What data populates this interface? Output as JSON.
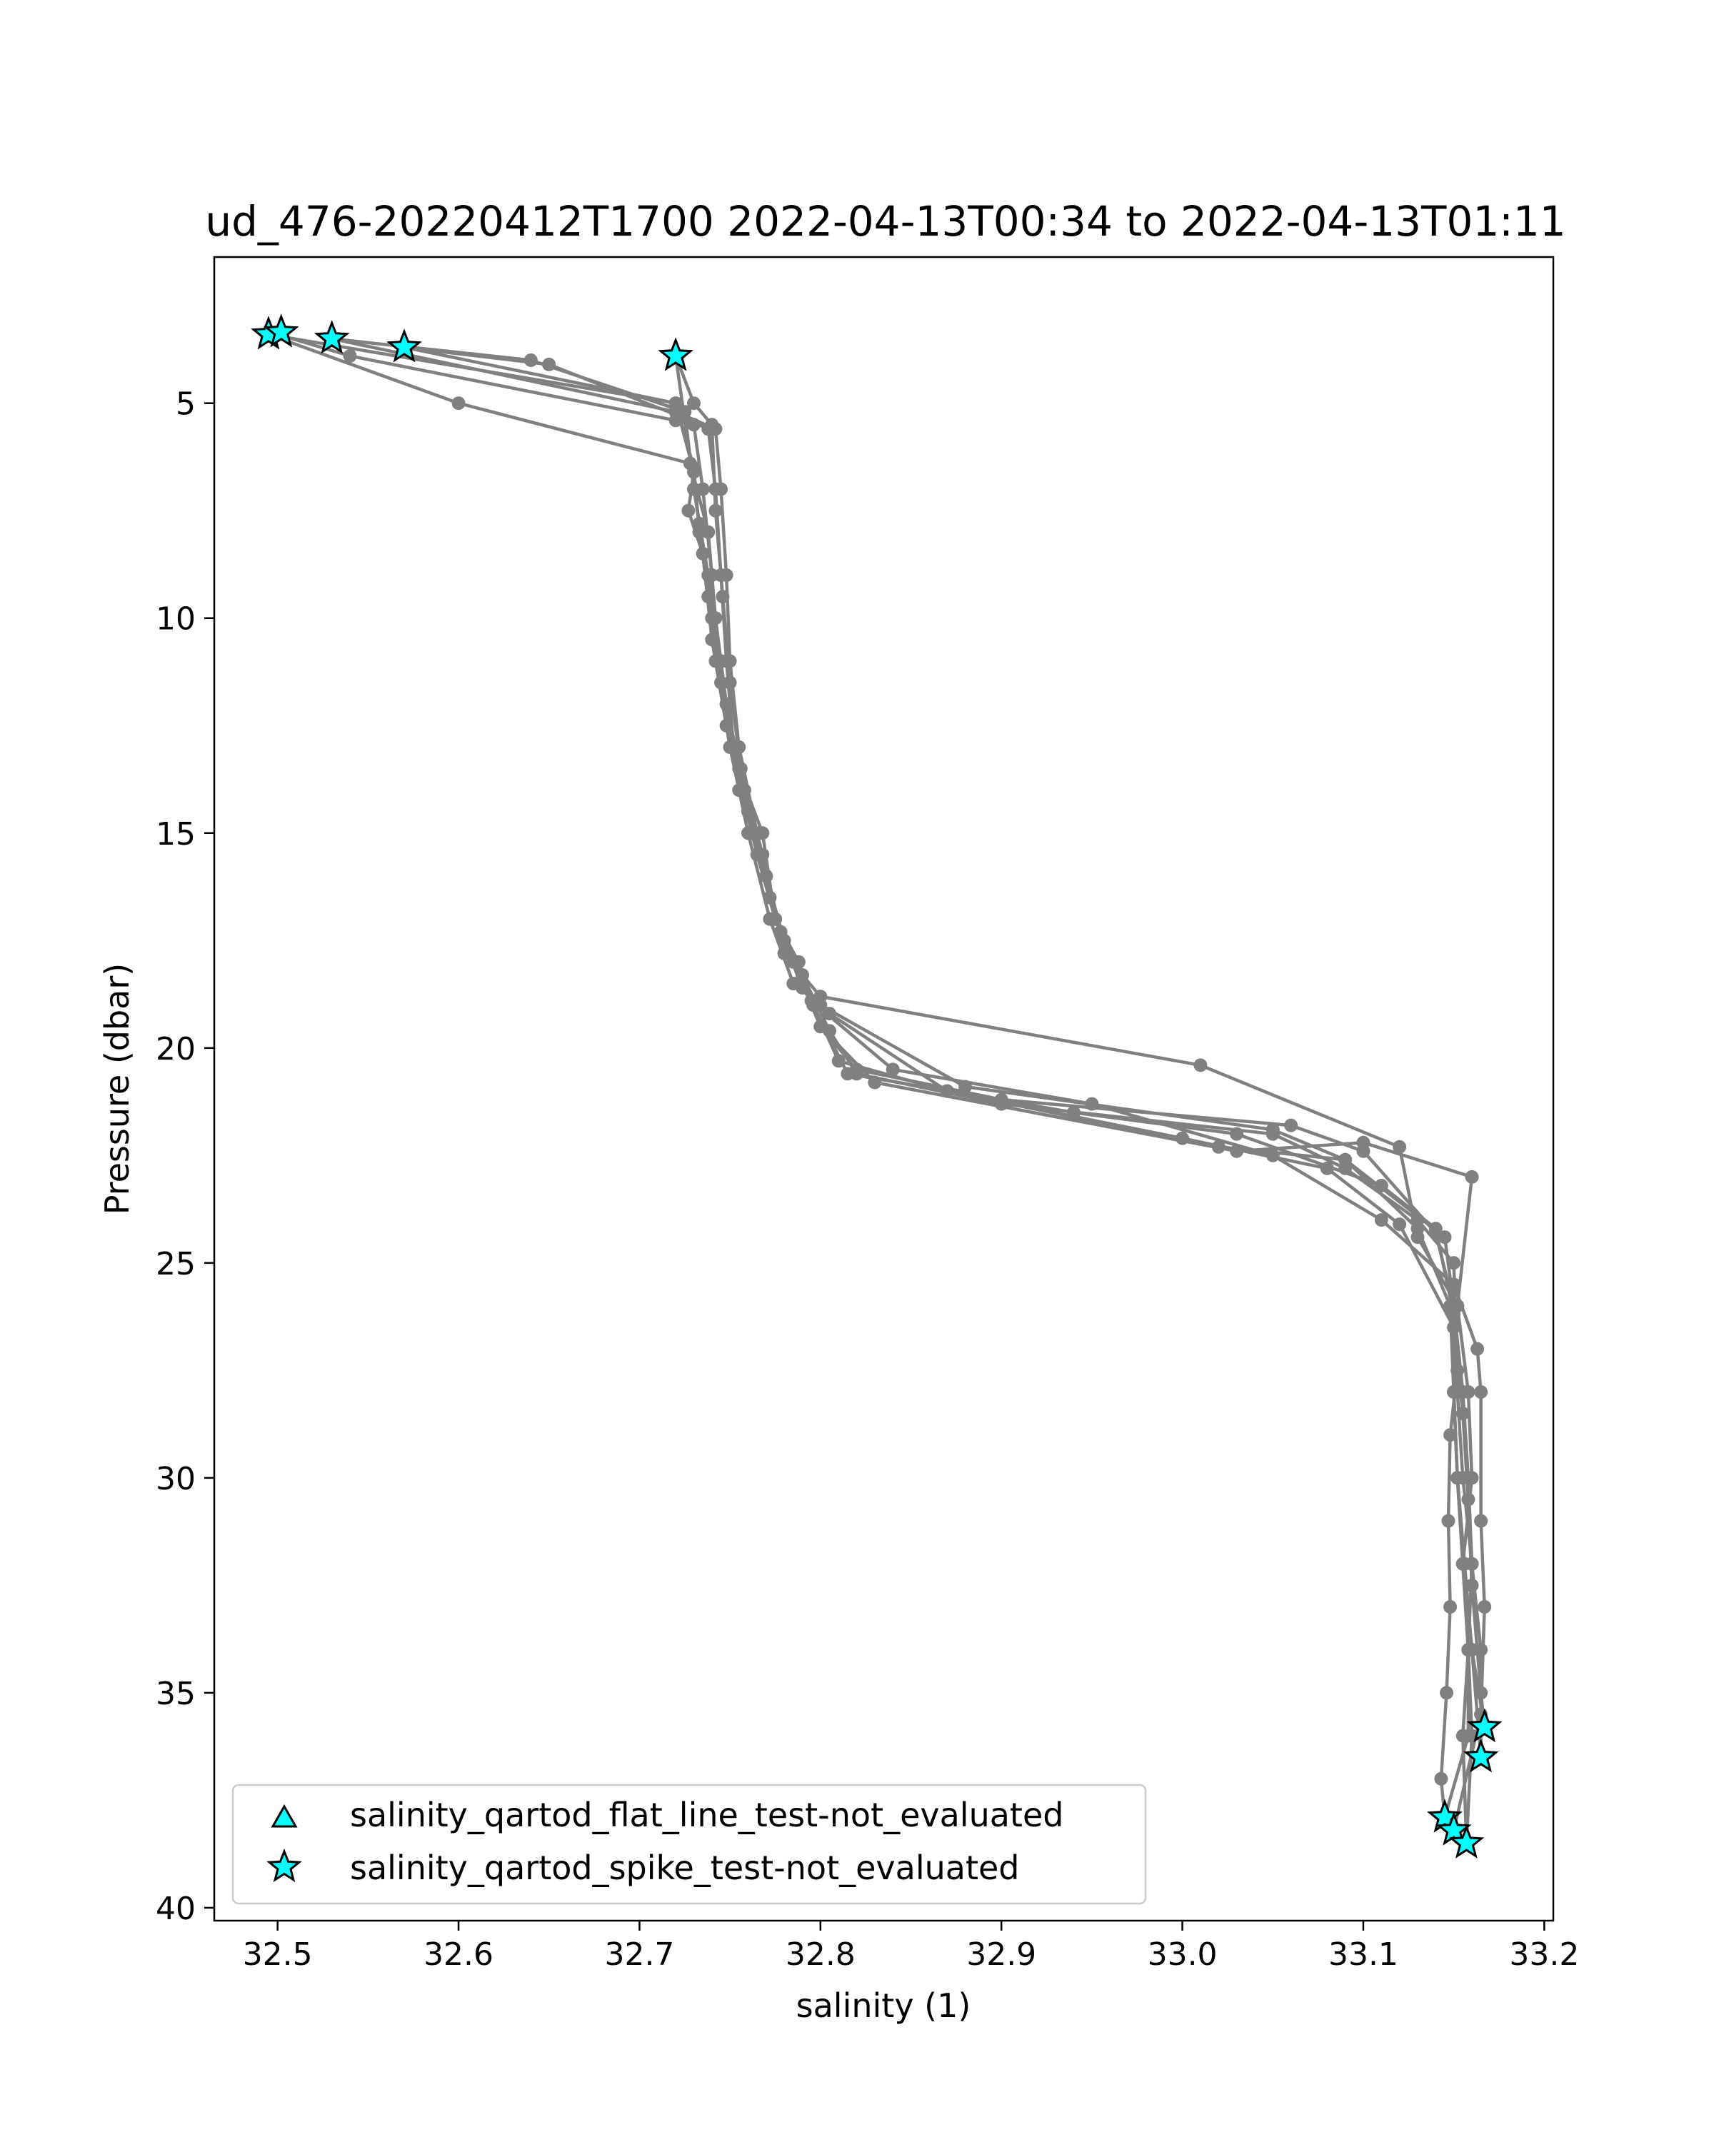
{
  "chart_data": {
    "type": "line",
    "title": "ud_476-20220412T1700 2022-04-13T00:34 to 2022-04-13T01:11",
    "xlabel": "salinity (1)",
    "ylabel": "Pressure (dbar)",
    "xlim": [
      32.465,
      33.205
    ],
    "ylim": [
      40.3,
      1.6
    ],
    "y_inverted": true,
    "xticks": [
      32.5,
      32.6,
      32.7,
      32.8,
      32.9,
      33.0,
      33.1,
      33.2
    ],
    "xtick_labels": [
      "32.5",
      "32.6",
      "32.7",
      "32.8",
      "32.9",
      "33.0",
      "33.1",
      "33.2"
    ],
    "yticks": [
      5,
      10,
      15,
      20,
      25,
      30,
      35,
      40
    ],
    "ytick_labels": [
      "5",
      "10",
      "15",
      "20",
      "25",
      "30",
      "35",
      "40"
    ],
    "grid": false,
    "legend_position": "lower-left",
    "colors": {
      "line": "#808080",
      "marker": "#808080",
      "flag_fill": "#00ffff",
      "flag_edge": "#000000"
    },
    "series": [
      {
        "profile": "down-1",
        "points": [
          [
            32.5,
            3.4
          ],
          [
            32.54,
            3.9
          ],
          [
            32.72,
            5.4
          ],
          [
            32.73,
            5.5
          ],
          [
            32.735,
            7.0
          ],
          [
            32.74,
            9.0
          ],
          [
            32.742,
            11.0
          ],
          [
            32.75,
            13.0
          ],
          [
            32.76,
            15.0
          ],
          [
            32.772,
            17.0
          ],
          [
            32.785,
            18.5
          ],
          [
            32.8,
            19.0
          ],
          [
            32.88,
            20.9
          ],
          [
            33.05,
            21.9
          ],
          [
            33.09,
            22.6
          ],
          [
            33.13,
            24.2
          ],
          [
            33.148,
            26.0
          ],
          [
            33.15,
            28.0
          ],
          [
            33.152,
            30.0
          ],
          [
            33.155,
            32.0
          ],
          [
            33.158,
            34.0
          ],
          [
            33.16,
            36.0
          ],
          [
            33.157,
            38.5
          ]
        ]
      },
      {
        "profile": "up-1",
        "points": [
          [
            33.157,
            38.5
          ],
          [
            33.155,
            36.0
          ],
          [
            33.158,
            34.0
          ],
          [
            33.16,
            32.0
          ],
          [
            33.158,
            30.0
          ],
          [
            33.155,
            28.0
          ],
          [
            33.15,
            26.0
          ],
          [
            33.14,
            24.3
          ],
          [
            33.1,
            22.4
          ],
          [
            33.06,
            21.8
          ],
          [
            32.9,
            21.2
          ],
          [
            32.82,
            20.5
          ],
          [
            32.8,
            19.5
          ],
          [
            32.788,
            18.0
          ],
          [
            32.775,
            17.0
          ],
          [
            32.768,
            15.0
          ],
          [
            32.75,
            13.0
          ],
          [
            32.745,
            11.0
          ],
          [
            32.738,
            9.0
          ],
          [
            32.73,
            7.0
          ],
          [
            32.725,
            5.2
          ],
          [
            32.64,
            4.0
          ],
          [
            32.53,
            3.5
          ]
        ]
      },
      {
        "profile": "down-2",
        "points": [
          [
            32.53,
            3.5
          ],
          [
            32.72,
            5.2
          ],
          [
            32.742,
            5.6
          ],
          [
            32.745,
            7.0
          ],
          [
            32.748,
            9.0
          ],
          [
            32.75,
            11.0
          ],
          [
            32.755,
            13.0
          ],
          [
            32.765,
            15.0
          ],
          [
            32.775,
            17.0
          ],
          [
            32.79,
            18.6
          ],
          [
            32.805,
            19.2
          ],
          [
            32.87,
            21.0
          ],
          [
            33.0,
            22.1
          ],
          [
            33.08,
            22.8
          ],
          [
            33.12,
            24.1
          ],
          [
            33.15,
            26.5
          ],
          [
            33.155,
            28.5
          ],
          [
            33.158,
            30.5
          ],
          [
            33.16,
            32.5
          ],
          [
            33.165,
            35.0
          ],
          [
            33.167,
            35.8
          ]
        ]
      },
      {
        "profile": "up-2",
        "points": [
          [
            33.167,
            35.8
          ],
          [
            33.16,
            34.0
          ],
          [
            33.155,
            32.0
          ],
          [
            33.152,
            30.0
          ],
          [
            33.15,
            28.0
          ],
          [
            33.152,
            26.0
          ],
          [
            33.16,
            23.0
          ],
          [
            33.1,
            22.2
          ],
          [
            33.03,
            22.4
          ],
          [
            32.83,
            20.8
          ],
          [
            32.8,
            19.5
          ],
          [
            32.785,
            18.0
          ],
          [
            32.772,
            16.5
          ],
          [
            32.76,
            14.5
          ],
          [
            32.748,
            12.5
          ],
          [
            32.74,
            10.5
          ],
          [
            32.735,
            8.5
          ],
          [
            32.727,
            7.5
          ],
          [
            32.73,
            6.6
          ],
          [
            32.72,
            5.0
          ],
          [
            32.57,
            3.7
          ]
        ]
      },
      {
        "profile": "down-3",
        "points": [
          [
            32.57,
            3.7
          ],
          [
            32.65,
            4.1
          ],
          [
            32.722,
            5.3
          ],
          [
            32.738,
            5.6
          ],
          [
            32.742,
            7.0
          ],
          [
            32.745,
            9.0
          ],
          [
            32.748,
            11.0
          ],
          [
            32.752,
            13.0
          ],
          [
            32.762,
            15.0
          ],
          [
            32.775,
            17.0
          ],
          [
            32.79,
            18.5
          ],
          [
            32.815,
            20.6
          ],
          [
            32.94,
            21.5
          ],
          [
            33.03,
            22.0
          ],
          [
            33.11,
            23.2
          ],
          [
            33.14,
            24.2
          ],
          [
            33.15,
            26.2
          ],
          [
            33.152,
            28.0
          ],
          [
            33.155,
            30.0
          ],
          [
            33.16,
            32.0
          ],
          [
            33.165,
            34.0
          ],
          [
            33.165,
            36.5
          ]
        ]
      },
      {
        "profile": "up-3",
        "points": [
          [
            33.165,
            36.5
          ],
          [
            33.16,
            34.0
          ],
          [
            33.156,
            32.0
          ],
          [
            33.152,
            30.0
          ],
          [
            33.15,
            28.0
          ],
          [
            33.15,
            26.0
          ],
          [
            33.145,
            24.4
          ],
          [
            33.09,
            22.6
          ],
          [
            33.02,
            22.3
          ],
          [
            32.87,
            21.0
          ],
          [
            32.81,
            20.3
          ],
          [
            32.796,
            19.0
          ],
          [
            32.78,
            17.5
          ],
          [
            32.77,
            16.0
          ],
          [
            32.758,
            14.0
          ],
          [
            32.748,
            12.0
          ],
          [
            32.74,
            10.0
          ],
          [
            32.733,
            8.0
          ],
          [
            32.73,
            6.5
          ],
          [
            32.72,
            5.0
          ],
          [
            32.495,
            3.4
          ]
        ]
      },
      {
        "profile": "down-4",
        "points": [
          [
            32.495,
            3.4
          ],
          [
            32.6,
            5.0
          ],
          [
            32.728,
            6.4
          ],
          [
            32.738,
            8.0
          ],
          [
            32.742,
            10.0
          ],
          [
            32.748,
            12.0
          ],
          [
            32.755,
            14.0
          ],
          [
            32.77,
            16.0
          ],
          [
            32.78,
            17.8
          ],
          [
            32.8,
            18.8
          ],
          [
            33.01,
            20.4
          ],
          [
            33.12,
            22.3
          ],
          [
            33.13,
            24.4
          ],
          [
            33.152,
            26.0
          ],
          [
            33.158,
            28.0
          ],
          [
            33.16,
            30.0
          ],
          [
            33.155,
            32.0
          ],
          [
            33.158,
            34.0
          ],
          [
            33.158,
            36.0
          ],
          [
            33.145,
            37.9
          ]
        ]
      },
      {
        "profile": "up-4",
        "points": [
          [
            33.145,
            37.9
          ],
          [
            33.143,
            37.0
          ],
          [
            33.146,
            35.0
          ],
          [
            33.148,
            33.0
          ],
          [
            33.147,
            31.0
          ],
          [
            33.148,
            29.0
          ],
          [
            33.152,
            27.5
          ],
          [
            33.15,
            25.0
          ],
          [
            33.13,
            24.0
          ],
          [
            33.09,
            22.8
          ],
          [
            33.05,
            22.0
          ],
          [
            32.9,
            21.3
          ],
          [
            32.82,
            20.6
          ],
          [
            32.805,
            19.6
          ],
          [
            32.79,
            18.3
          ],
          [
            32.775,
            17.0
          ],
          [
            32.765,
            15.5
          ],
          [
            32.755,
            13.5
          ],
          [
            32.745,
            11.5
          ],
          [
            32.738,
            9.5
          ],
          [
            32.733,
            7.8
          ],
          [
            32.72,
            3.9
          ]
        ]
      },
      {
        "profile": "down-5",
        "points": [
          [
            32.72,
            3.9
          ],
          [
            32.73,
            5.0
          ],
          [
            32.74,
            5.5
          ],
          [
            32.742,
            7.5
          ],
          [
            32.746,
            9.5
          ],
          [
            32.75,
            11.5
          ],
          [
            32.756,
            13.5
          ],
          [
            32.768,
            15.5
          ],
          [
            32.778,
            17.3
          ],
          [
            32.795,
            18.9
          ],
          [
            32.84,
            20.5
          ],
          [
            32.95,
            21.3
          ],
          [
            33.05,
            22.5
          ],
          [
            33.11,
            24.0
          ],
          [
            33.15,
            25.5
          ],
          [
            33.163,
            27.0
          ],
          [
            33.165,
            28.0
          ],
          [
            33.165,
            31.0
          ],
          [
            33.167,
            33.0
          ],
          [
            33.165,
            35.5
          ],
          [
            33.15,
            38.2
          ]
        ]
      }
    ],
    "flag_series": [
      {
        "name": "salinity_qartod_flat_line_test-not_evaluated",
        "marker": "triangle",
        "points": []
      },
      {
        "name": "salinity_qartod_spike_test-not_evaluated",
        "marker": "star",
        "points": [
          [
            32.495,
            3.4
          ],
          [
            32.502,
            3.35
          ],
          [
            32.53,
            3.5
          ],
          [
            32.57,
            3.7
          ],
          [
            32.72,
            3.9
          ],
          [
            33.167,
            35.8
          ],
          [
            33.165,
            36.5
          ],
          [
            33.145,
            37.9
          ],
          [
            33.15,
            38.2
          ],
          [
            33.157,
            38.5
          ]
        ]
      }
    ]
  }
}
